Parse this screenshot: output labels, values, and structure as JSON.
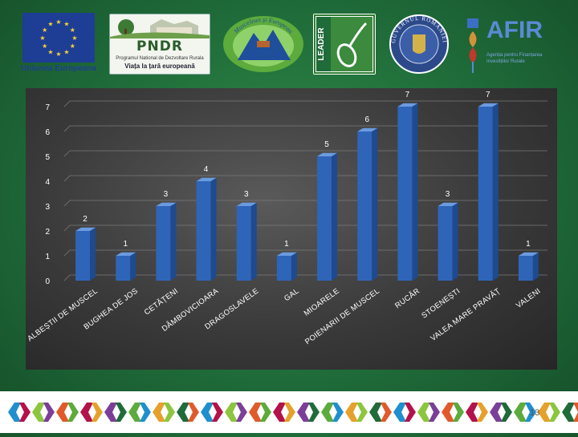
{
  "logos": {
    "eu_label": "Uniunea Europeana",
    "pndr_title": "PNDR",
    "pndr_sub": "Programul National de Dezvoltare Rurala",
    "pndr_tagline": "Viața la țară europeană",
    "musc_text": "Muscelean și European",
    "leader_text": "LEADER",
    "gov_text": "GUVERNUL ROMÂNIEI",
    "afir_title": "AFIR",
    "afir_sub": "Agenția pentru Finanțarea Investițiilor Rurale"
  },
  "colors": {
    "bar_front": "#2f65b8",
    "bar_side": "#1e4a8f",
    "bar_top": "#6a9be0",
    "grid": "#7a7a7a",
    "text": "#ffffff"
  },
  "chart_data": {
    "type": "bar",
    "categories": [
      "ALBEȘTII DE MUSCEL",
      "BUGHEA DE JOS",
      "CETĂȚENI",
      "DÂMBOVICIOARA",
      "DRAGOSLAVELE",
      "GAL",
      "MIOARELE",
      "POIENARII DE MUSCEL",
      "RUCĂR",
      "STOENEȘTI",
      "VALEA MARE PRAVĂȚ",
      "VALENI"
    ],
    "values": [
      2,
      1,
      3,
      4,
      3,
      1,
      5,
      6,
      7,
      3,
      7,
      1
    ],
    "y_ticks": [
      "0",
      "1",
      "2",
      "3",
      "4",
      "5",
      "6",
      "7"
    ],
    "ylim": [
      0,
      7
    ],
    "data_labels": true,
    "legend": "none",
    "grid": true
  },
  "footer": {
    "page_number": "13"
  }
}
